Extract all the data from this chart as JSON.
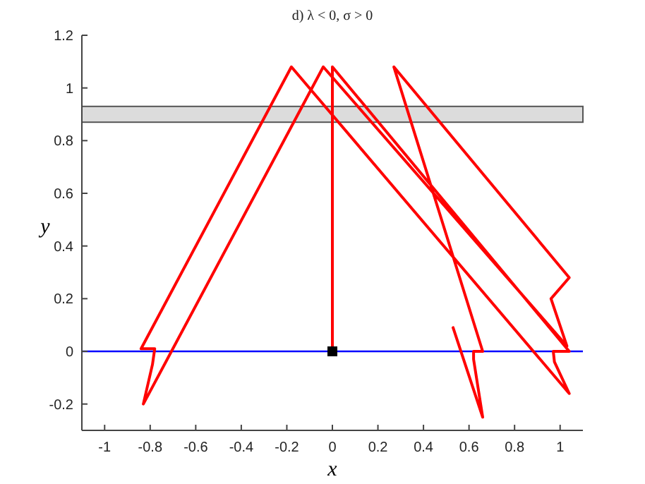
{
  "chart_data": {
    "type": "line",
    "title": "d) λ < 0, σ > 0",
    "xlabel": "x",
    "ylabel": "y",
    "xlim": [
      -1.1,
      1.1
    ],
    "ylim": [
      -0.3,
      1.2
    ],
    "xticks": [
      -1,
      -0.8,
      -0.6,
      -0.4,
      -0.2,
      0,
      0.2,
      0.4,
      0.6,
      0.8,
      1
    ],
    "yticks": [
      -0.2,
      0,
      0.2,
      0.4,
      0.6,
      0.8,
      1,
      1.2
    ],
    "grid": false,
    "marker": "none",
    "line_style": "solid",
    "series": [
      {
        "color": "#ff0000",
        "x": [
          0,
          0,
          1.04,
          0.97,
          0.975,
          1.04,
          -0.18,
          -0.84,
          -0.78,
          -0.79,
          -0.83,
          -0.04,
          1.03,
          0.96,
          1.04,
          0.27,
          0.66,
          0.62,
          0.62,
          0.66,
          0.53
        ],
        "values": [
          0,
          1.08,
          0,
          0,
          -0.04,
          -0.16,
          1.08,
          0.01,
          0.01,
          -0.05,
          -0.2,
          1.08,
          0.02,
          0.2,
          0.28,
          1.08,
          0,
          0,
          -0.03,
          -0.25,
          0.09
        ]
      },
      {
        "type": "scatter",
        "color": "#000000",
        "marker": "square",
        "x": [
          0
        ],
        "values": [
          0
        ]
      }
    ],
    "ref_lines": [
      {
        "axis": "y",
        "value": 0,
        "color": "#0000ff"
      }
    ],
    "bands": [
      {
        "axis": "y",
        "from": 0.87,
        "to": 0.93,
        "color": "#dcdcdc"
      }
    ]
  }
}
